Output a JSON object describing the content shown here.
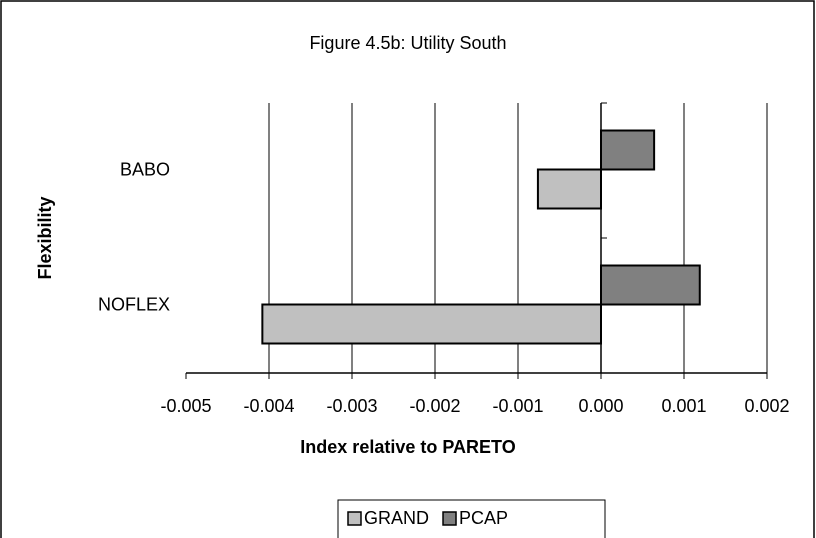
{
  "chart_data": {
    "type": "hbar",
    "title": "Figure 4.5b: Utility South",
    "xlabel": "Index relative to PARETO",
    "ylabel": "Flexibility",
    "categories": [
      "BABO",
      "NOFLEX"
    ],
    "series": [
      {
        "name": "GRAND",
        "color": "#c0c0c0",
        "values": [
          -0.00076,
          -0.00408
        ]
      },
      {
        "name": "PCAP",
        "color": "#808080",
        "values": [
          0.00064,
          0.00119
        ]
      }
    ],
    "xlim": [
      -0.005,
      0.002
    ],
    "xticks": [
      -0.005,
      -0.004,
      -0.003,
      -0.002,
      -0.001,
      {
        "value": 0,
        "label": "0.000"
      },
      0.001,
      0.002
    ],
    "grid": true,
    "legend": "bottom"
  }
}
